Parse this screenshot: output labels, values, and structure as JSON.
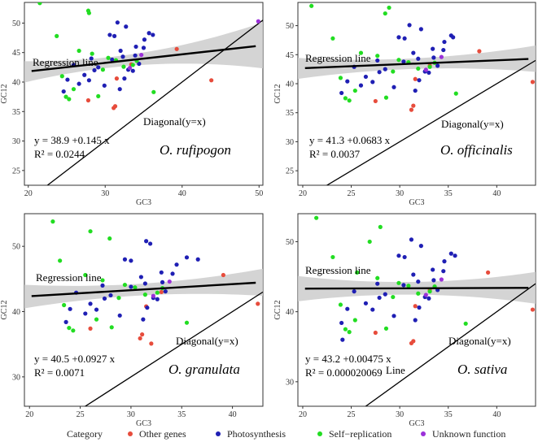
{
  "legend": {
    "title": "Category",
    "items": [
      {
        "name": "Other genes",
        "color": "#e74c3c"
      },
      {
        "name": "Photosynthesis",
        "color": "#1f1fb4"
      },
      {
        "name": "Self−replication",
        "color": "#22dd22"
      },
      {
        "name": "Unknown function",
        "color": "#9b30d9"
      }
    ]
  },
  "chart_data": [
    {
      "type": "scatter",
      "species": "O. rufipogon",
      "xlabel": "GC3",
      "ylabel": "GC12",
      "xlim": [
        19.5,
        50.5
      ],
      "ylim": [
        22.5,
        53.5
      ],
      "xticks": [
        20,
        30,
        40,
        50
      ],
      "yticks": [
        25,
        30,
        35,
        40,
        45,
        50
      ],
      "regression_label": "Regression line",
      "diagonal_label": "Diagonal(y=x)",
      "equation": "y = 38.9 +0.145 x",
      "r2": "R² = 0.0244",
      "intercept": 38.9,
      "slope": 0.145,
      "series": [
        {
          "name": "Other genes",
          "color": "#e74c3c",
          "points": [
            [
              27.8,
              36.9
            ],
            [
              31.1,
              35.6
            ],
            [
              31.3,
              35.9
            ],
            [
              39.3,
              45.6
            ],
            [
              43.8,
              40.3
            ],
            [
              31.5,
              40.6
            ],
            [
              33.4,
              43.0
            ]
          ]
        },
        {
          "name": "Photosynthesis",
          "color": "#1f1fb4",
          "points": [
            [
              24.6,
              38.4
            ],
            [
              25.1,
              40.4
            ],
            [
              25.9,
              42.9
            ],
            [
              27.3,
              41.2
            ],
            [
              27.9,
              40.3
            ],
            [
              28.6,
              42.0
            ],
            [
              29.1,
              42.5
            ],
            [
              29.9,
              39.4
            ],
            [
              30.6,
              48.0
            ],
            [
              31.2,
              47.8
            ],
            [
              31.6,
              50.1
            ],
            [
              32.0,
              45.3
            ],
            [
              32.3,
              44.3
            ],
            [
              32.7,
              49.4
            ],
            [
              33.0,
              42.1
            ],
            [
              33.6,
              41.9
            ],
            [
              34.0,
              46.0
            ],
            [
              34.4,
              43.1
            ],
            [
              35.1,
              47.2
            ],
            [
              35.7,
              48.3
            ],
            [
              36.2,
              48.0
            ],
            [
              31.9,
              38.8
            ],
            [
              32.5,
              40.6
            ],
            [
              33.9,
              44.5
            ],
            [
              35.0,
              45.8
            ],
            [
              28.2,
              44.0
            ],
            [
              26.6,
              39.7
            ],
            [
              30.9,
              43.8
            ]
          ]
        },
        {
          "name": "Self−replication",
          "color": "#22dd22",
          "points": [
            [
              21.5,
              53.4
            ],
            [
              23.7,
              47.8
            ],
            [
              24.9,
              37.5
            ],
            [
              25.3,
              37.1
            ],
            [
              26.6,
              45.3
            ],
            [
              27.8,
              52.1
            ],
            [
              27.9,
              51.7
            ],
            [
              28.3,
              44.8
            ],
            [
              29.7,
              42.1
            ],
            [
              30.4,
              44.1
            ],
            [
              31.4,
              43.7
            ],
            [
              32.4,
              42.6
            ],
            [
              33.6,
              42.9
            ],
            [
              34.1,
              43.6
            ],
            [
              36.3,
              38.3
            ],
            [
              25.9,
              38.8
            ],
            [
              29.1,
              37.6
            ],
            [
              24.4,
              41.0
            ]
          ]
        },
        {
          "name": "Unknown function",
          "color": "#9b30d9",
          "points": [
            [
              49.9,
              50.3
            ],
            [
              34.7,
              44.6
            ],
            [
              33.2,
              42.4
            ]
          ]
        }
      ]
    },
    {
      "type": "scatter",
      "species": "O. officinalis",
      "xlabel": "GC3",
      "ylabel": "GC12",
      "xlim": [
        19.5,
        44.0
      ],
      "ylim": [
        22.5,
        54.0
      ],
      "xticks": [
        20,
        25,
        30,
        35,
        40
      ],
      "yticks": [
        25,
        30,
        35,
        40,
        45,
        50
      ],
      "regression_label": "Regression line",
      "diagonal_label": "Diagonal(y=x)",
      "equation": "y = 41.3 +0.0683 x",
      "r2": "R² = 0.0037",
      "intercept": 41.3,
      "slope": 0.0683,
      "series": [
        {
          "name": "Other genes",
          "color": "#e74c3c",
          "points": [
            [
              27.5,
              37.0
            ],
            [
              31.2,
              35.5
            ],
            [
              31.4,
              36.2
            ],
            [
              38.2,
              45.6
            ],
            [
              43.7,
              40.3
            ],
            [
              31.6,
              40.8
            ],
            [
              33.1,
              43.1
            ]
          ]
        },
        {
          "name": "Photosynthesis",
          "color": "#1f1fb4",
          "points": [
            [
              24.0,
              38.4
            ],
            [
              24.6,
              40.4
            ],
            [
              25.3,
              42.9
            ],
            [
              26.5,
              41.2
            ],
            [
              27.2,
              40.3
            ],
            [
              27.9,
              42.0
            ],
            [
              28.5,
              42.5
            ],
            [
              29.4,
              39.4
            ],
            [
              29.9,
              48.0
            ],
            [
              30.5,
              47.8
            ],
            [
              31.0,
              50.1
            ],
            [
              31.4,
              45.3
            ],
            [
              31.9,
              44.3
            ],
            [
              32.2,
              49.4
            ],
            [
              32.6,
              42.1
            ],
            [
              33.0,
              41.9
            ],
            [
              33.4,
              46.0
            ],
            [
              33.9,
              43.1
            ],
            [
              34.6,
              47.2
            ],
            [
              35.3,
              48.3
            ],
            [
              35.5,
              48.0
            ],
            [
              31.6,
              38.8
            ],
            [
              32.0,
              40.6
            ],
            [
              33.5,
              44.5
            ],
            [
              34.5,
              45.8
            ],
            [
              27.7,
              44.0
            ],
            [
              26.0,
              39.7
            ],
            [
              30.4,
              43.8
            ]
          ]
        },
        {
          "name": "Self−replication",
          "color": "#22dd22",
          "points": [
            [
              20.9,
              53.4
            ],
            [
              23.1,
              47.8
            ],
            [
              24.4,
              37.5
            ],
            [
              24.8,
              37.1
            ],
            [
              26.0,
              45.3
            ],
            [
              28.5,
              52.1
            ],
            [
              28.9,
              53.1
            ],
            [
              27.7,
              44.8
            ],
            [
              29.3,
              42.1
            ],
            [
              29.9,
              44.1
            ],
            [
              30.9,
              43.7
            ],
            [
              31.9,
              42.6
            ],
            [
              33.1,
              42.9
            ],
            [
              33.6,
              43.6
            ],
            [
              35.8,
              38.3
            ],
            [
              25.4,
              38.8
            ],
            [
              28.6,
              37.6
            ],
            [
              23.9,
              41.0
            ]
          ]
        },
        {
          "name": "Unknown function",
          "color": "#9b30d9",
          "points": [
            [
              34.3,
              44.6
            ],
            [
              32.7,
              42.4
            ]
          ]
        }
      ]
    },
    {
      "type": "scatter",
      "species": "O. granulata",
      "xlabel": "GC3",
      "ylabel": "GC12",
      "xlim": [
        19.5,
        43.0
      ],
      "ylim": [
        25.5,
        55.0
      ],
      "xticks": [
        20,
        25,
        30,
        35,
        40
      ],
      "yticks": [
        30,
        40,
        50
      ],
      "regression_label": "Regression line",
      "diagonal_label": "Diagonal(y=x)",
      "equation": "y = 40.5 +0.0927 x",
      "r2": "R² = 0.0071",
      "intercept": 40.5,
      "slope": 0.0927,
      "series": [
        {
          "name": "Other genes",
          "color": "#e74c3c",
          "points": [
            [
              26.0,
              37.4
            ],
            [
              30.9,
              35.9
            ],
            [
              31.1,
              36.5
            ],
            [
              32.0,
              35.1
            ],
            [
              39.1,
              45.6
            ],
            [
              42.5,
              41.2
            ],
            [
              31.5,
              40.8
            ],
            [
              33.0,
              43.0
            ]
          ]
        },
        {
          "name": "Photosynthesis",
          "color": "#1f1fb4",
          "points": [
            [
              23.6,
              38.4
            ],
            [
              24.0,
              40.4
            ],
            [
              24.6,
              42.9
            ],
            [
              26.0,
              41.2
            ],
            [
              26.6,
              40.3
            ],
            [
              27.4,
              42.0
            ],
            [
              28.0,
              42.5
            ],
            [
              28.9,
              39.4
            ],
            [
              29.4,
              48.0
            ],
            [
              30.0,
              47.8
            ],
            [
              31.5,
              50.8
            ],
            [
              31.0,
              45.3
            ],
            [
              31.4,
              44.3
            ],
            [
              31.9,
              50.4
            ],
            [
              32.2,
              42.1
            ],
            [
              32.6,
              41.9
            ],
            [
              33.0,
              46.0
            ],
            [
              33.4,
              43.1
            ],
            [
              34.5,
              47.2
            ],
            [
              35.5,
              48.3
            ],
            [
              36.6,
              48.0
            ],
            [
              31.2,
              38.8
            ],
            [
              31.6,
              40.6
            ],
            [
              33.1,
              44.5
            ],
            [
              34.1,
              45.8
            ],
            [
              27.2,
              44.0
            ],
            [
              25.5,
              39.7
            ],
            [
              30.0,
              43.8
            ]
          ]
        },
        {
          "name": "Self−replication",
          "color": "#22dd22",
          "points": [
            [
              22.3,
              53.8
            ],
            [
              23.0,
              47.8
            ],
            [
              23.9,
              37.5
            ],
            [
              24.3,
              37.1
            ],
            [
              25.5,
              45.6
            ],
            [
              26.0,
              52.3
            ],
            [
              27.9,
              51.2
            ],
            [
              27.2,
              44.8
            ],
            [
              28.8,
              42.1
            ],
            [
              29.4,
              44.1
            ],
            [
              30.4,
              43.7
            ],
            [
              31.4,
              42.6
            ],
            [
              32.6,
              42.9
            ],
            [
              33.1,
              43.6
            ],
            [
              35.5,
              38.3
            ],
            [
              26.6,
              38.8
            ],
            [
              28.1,
              37.6
            ],
            [
              23.4,
              41.0
            ]
          ]
        },
        {
          "name": "Unknown function",
          "color": "#9b30d9",
          "points": [
            [
              33.8,
              44.6
            ],
            [
              32.2,
              42.4
            ]
          ]
        }
      ]
    },
    {
      "type": "scatter",
      "species": "O. sativa",
      "xlabel": "GC3",
      "ylabel": "GC12",
      "xlim": [
        19.5,
        44.0
      ],
      "ylim": [
        26.5,
        54.0
      ],
      "xticks": [
        20,
        25,
        30,
        35,
        40
      ],
      "yticks": [
        30,
        40,
        50
      ],
      "regression_label": "Regression line",
      "diagonal_label": "Diagonal(y=x)",
      "line_label": "Line",
      "equation": "y = 43.2 +0.00475 x",
      "r2": "R² = 0.000020069",
      "intercept": 43.2,
      "slope": 0.00475,
      "series": [
        {
          "name": "Other genes",
          "color": "#e74c3c",
          "points": [
            [
              27.5,
              37.0
            ],
            [
              31.2,
              35.5
            ],
            [
              31.4,
              35.8
            ],
            [
              39.1,
              45.6
            ],
            [
              43.7,
              40.3
            ],
            [
              31.6,
              40.8
            ],
            [
              33.1,
              43.1
            ]
          ]
        },
        {
          "name": "Photosynthesis",
          "color": "#1f1fb4",
          "points": [
            [
              24.0,
              38.4
            ],
            [
              24.6,
              40.4
            ],
            [
              25.3,
              42.9
            ],
            [
              26.5,
              41.2
            ],
            [
              27.2,
              40.3
            ],
            [
              27.9,
              42.0
            ],
            [
              28.5,
              42.5
            ],
            [
              29.4,
              39.4
            ],
            [
              29.9,
              48.0
            ],
            [
              30.5,
              47.8
            ],
            [
              31.2,
              50.3
            ],
            [
              31.4,
              45.3
            ],
            [
              31.9,
              44.3
            ],
            [
              32.2,
              49.4
            ],
            [
              32.6,
              42.1
            ],
            [
              33.0,
              41.9
            ],
            [
              33.4,
              46.0
            ],
            [
              33.9,
              43.1
            ],
            [
              34.6,
              47.2
            ],
            [
              35.3,
              48.3
            ],
            [
              35.7,
              48.0
            ],
            [
              31.6,
              38.8
            ],
            [
              32.0,
              40.6
            ],
            [
              33.5,
              44.5
            ],
            [
              34.5,
              45.8
            ],
            [
              27.7,
              44.0
            ],
            [
              24.1,
              36.0
            ],
            [
              30.4,
              43.8
            ]
          ]
        },
        {
          "name": "Self−replication",
          "color": "#22dd22",
          "points": [
            [
              21.4,
              53.4
            ],
            [
              23.1,
              47.8
            ],
            [
              24.4,
              37.5
            ],
            [
              24.8,
              37.1
            ],
            [
              25.6,
              45.6
            ],
            [
              26.9,
              50.0
            ],
            [
              28.0,
              52.1
            ],
            [
              27.7,
              44.8
            ],
            [
              29.3,
              42.1
            ],
            [
              29.9,
              44.1
            ],
            [
              30.9,
              43.7
            ],
            [
              31.9,
              42.6
            ],
            [
              33.1,
              42.9
            ],
            [
              33.6,
              43.6
            ],
            [
              36.8,
              38.3
            ],
            [
              25.4,
              38.8
            ],
            [
              28.6,
              37.6
            ],
            [
              23.9,
              41.0
            ]
          ]
        },
        {
          "name": "Unknown function",
          "color": "#9b30d9",
          "points": [
            [
              34.3,
              44.6
            ],
            [
              32.7,
              42.4
            ]
          ]
        }
      ]
    }
  ]
}
